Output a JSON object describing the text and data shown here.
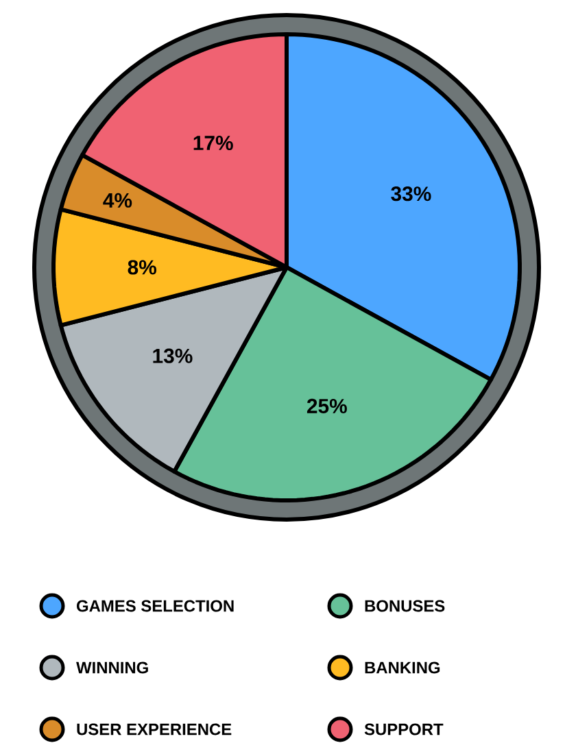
{
  "chart_data": {
    "type": "pie",
    "categories": [
      "GAMES SELECTION",
      "BONUSES",
      "WINNING",
      "BANKING",
      "USER EXPERIENCE",
      "SUPPORT"
    ],
    "values": [
      33,
      25,
      13,
      8,
      4,
      17
    ],
    "colors": [
      "#4da6ff",
      "#66c199",
      "#b0b8bd",
      "#ffbb22",
      "#d98c2a",
      "#f06272"
    ],
    "value_labels": [
      "33%",
      "25%",
      "13%",
      "8%",
      "4%",
      "17%"
    ],
    "legend": "bottom"
  }
}
